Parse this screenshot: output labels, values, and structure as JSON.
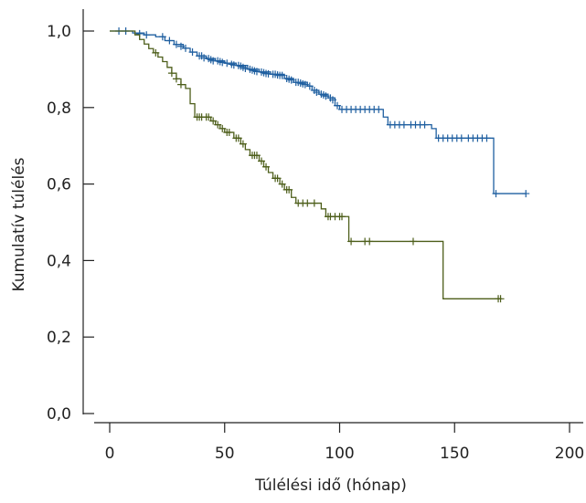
{
  "chart_data": {
    "type": "line",
    "subtype": "kaplan-meier",
    "xlabel": "Túlélési idő (hónap)",
    "ylabel": "Kumulatív túlélés",
    "xlim": [
      0,
      200
    ],
    "ylim": [
      0,
      1.0
    ],
    "x_ticks": [
      0,
      50,
      100,
      150,
      200
    ],
    "x_tick_labels": [
      "0",
      "50",
      "100",
      "150",
      "200"
    ],
    "y_ticks": [
      0,
      0.2,
      0.4,
      0.6,
      0.8,
      1.0
    ],
    "y_tick_labels": [
      "0,0",
      "0,2",
      "0,4",
      "0,6",
      "0,8",
      "1,0"
    ],
    "grid": false,
    "legend": "none",
    "series": [
      {
        "color": "#1f5fa0",
        "steps": [
          [
            0,
            1.0
          ],
          [
            10,
            0.995
          ],
          [
            15,
            0.99
          ],
          [
            20,
            0.985
          ],
          [
            24,
            0.975
          ],
          [
            28,
            0.965
          ],
          [
            32,
            0.955
          ],
          [
            35,
            0.945
          ],
          [
            38,
            0.935
          ],
          [
            42,
            0.928
          ],
          [
            46,
            0.922
          ],
          [
            50,
            0.916
          ],
          [
            55,
            0.91
          ],
          [
            60,
            0.9
          ],
          [
            65,
            0.893
          ],
          [
            70,
            0.887
          ],
          [
            76,
            0.876
          ],
          [
            80,
            0.866
          ],
          [
            86,
            0.856
          ],
          [
            88,
            0.845
          ],
          [
            91,
            0.835
          ],
          [
            95,
            0.825
          ],
          [
            98,
            0.805
          ],
          [
            100,
            0.795
          ],
          [
            119,
            0.775
          ],
          [
            121,
            0.755
          ],
          [
            140,
            0.745
          ],
          [
            142,
            0.72
          ],
          [
            166,
            0.72
          ],
          [
            167,
            0.575
          ],
          [
            181,
            0.575
          ]
        ],
        "censored": [
          [
            4,
            1.0
          ],
          [
            7,
            1.0
          ],
          [
            13,
            0.993
          ],
          [
            16,
            0.99
          ],
          [
            23,
            0.985
          ],
          [
            26,
            0.975
          ],
          [
            29,
            0.965
          ],
          [
            31,
            0.96
          ],
          [
            33,
            0.955
          ],
          [
            36,
            0.945
          ],
          [
            39,
            0.935
          ],
          [
            40,
            0.935
          ],
          [
            41,
            0.93
          ],
          [
            43,
            0.928
          ],
          [
            44,
            0.925
          ],
          [
            45,
            0.922
          ],
          [
            47,
            0.922
          ],
          [
            48,
            0.92
          ],
          [
            49,
            0.918
          ],
          [
            51,
            0.916
          ],
          [
            53,
            0.913
          ],
          [
            54,
            0.911
          ],
          [
            56,
            0.91
          ],
          [
            57,
            0.908
          ],
          [
            58,
            0.905
          ],
          [
            59,
            0.902
          ],
          [
            61,
            0.9
          ],
          [
            62,
            0.898
          ],
          [
            63,
            0.896
          ],
          [
            64,
            0.894
          ],
          [
            66,
            0.893
          ],
          [
            67,
            0.891
          ],
          [
            68,
            0.889
          ],
          [
            69,
            0.888
          ],
          [
            71,
            0.887
          ],
          [
            72,
            0.887
          ],
          [
            73,
            0.885
          ],
          [
            74,
            0.884
          ],
          [
            75,
            0.884
          ],
          [
            77,
            0.876
          ],
          [
            78,
            0.874
          ],
          [
            79,
            0.872
          ],
          [
            81,
            0.866
          ],
          [
            82,
            0.866
          ],
          [
            83,
            0.864
          ],
          [
            84,
            0.862
          ],
          [
            85,
            0.86
          ],
          [
            87,
            0.856
          ],
          [
            89,
            0.845
          ],
          [
            90,
            0.84
          ],
          [
            92,
            0.835
          ],
          [
            93,
            0.833
          ],
          [
            94,
            0.83
          ],
          [
            96,
            0.825
          ],
          [
            97,
            0.82
          ],
          [
            99,
            0.805
          ],
          [
            101,
            0.795
          ],
          [
            103,
            0.795
          ],
          [
            105,
            0.795
          ],
          [
            107,
            0.795
          ],
          [
            109,
            0.795
          ],
          [
            111,
            0.795
          ],
          [
            113,
            0.795
          ],
          [
            115,
            0.795
          ],
          [
            117,
            0.795
          ],
          [
            122,
            0.755
          ],
          [
            124,
            0.755
          ],
          [
            126,
            0.755
          ],
          [
            128,
            0.755
          ],
          [
            131,
            0.755
          ],
          [
            133,
            0.755
          ],
          [
            135,
            0.755
          ],
          [
            137,
            0.755
          ],
          [
            143,
            0.72
          ],
          [
            145,
            0.72
          ],
          [
            147,
            0.72
          ],
          [
            149,
            0.72
          ],
          [
            151,
            0.72
          ],
          [
            153,
            0.72
          ],
          [
            156,
            0.72
          ],
          [
            158,
            0.72
          ],
          [
            160,
            0.72
          ],
          [
            162,
            0.72
          ],
          [
            164,
            0.72
          ],
          [
            168,
            0.575
          ],
          [
            181,
            0.575
          ]
        ]
      },
      {
        "color": "#4d5e1a",
        "steps": [
          [
            0,
            1.0
          ],
          [
            11,
            0.99
          ],
          [
            13,
            0.978
          ],
          [
            15,
            0.966
          ],
          [
            17,
            0.954
          ],
          [
            19,
            0.943
          ],
          [
            21,
            0.932
          ],
          [
            23,
            0.92
          ],
          [
            25,
            0.905
          ],
          [
            27,
            0.89
          ],
          [
            29,
            0.875
          ],
          [
            31,
            0.86
          ],
          [
            33,
            0.85
          ],
          [
            35,
            0.81
          ],
          [
            37,
            0.775
          ],
          [
            44,
            0.765
          ],
          [
            46,
            0.755
          ],
          [
            48,
            0.745
          ],
          [
            50,
            0.735
          ],
          [
            54,
            0.72
          ],
          [
            57,
            0.705
          ],
          [
            59,
            0.69
          ],
          [
            61,
            0.675
          ],
          [
            65,
            0.66
          ],
          [
            67,
            0.645
          ],
          [
            69,
            0.63
          ],
          [
            71,
            0.615
          ],
          [
            74,
            0.6
          ],
          [
            76,
            0.585
          ],
          [
            79,
            0.565
          ],
          [
            81,
            0.55
          ],
          [
            92,
            0.535
          ],
          [
            94,
            0.515
          ],
          [
            104,
            0.45
          ],
          [
            144,
            0.45
          ],
          [
            145,
            0.3
          ],
          [
            170,
            0.3
          ]
        ],
        "censored": [
          [
            20,
            0.943
          ],
          [
            27,
            0.89
          ],
          [
            29,
            0.875
          ],
          [
            31,
            0.86
          ],
          [
            38,
            0.775
          ],
          [
            39,
            0.775
          ],
          [
            40,
            0.775
          ],
          [
            42,
            0.775
          ],
          [
            43,
            0.775
          ],
          [
            45,
            0.765
          ],
          [
            47,
            0.755
          ],
          [
            49,
            0.745
          ],
          [
            51,
            0.735
          ],
          [
            52,
            0.735
          ],
          [
            55,
            0.72
          ],
          [
            56,
            0.72
          ],
          [
            58,
            0.705
          ],
          [
            62,
            0.675
          ],
          [
            63,
            0.675
          ],
          [
            64,
            0.675
          ],
          [
            66,
            0.66
          ],
          [
            68,
            0.645
          ],
          [
            72,
            0.615
          ],
          [
            73,
            0.615
          ],
          [
            75,
            0.6
          ],
          [
            77,
            0.585
          ],
          [
            78,
            0.585
          ],
          [
            82,
            0.55
          ],
          [
            84,
            0.55
          ],
          [
            86,
            0.55
          ],
          [
            89,
            0.55
          ],
          [
            95,
            0.515
          ],
          [
            96,
            0.515
          ],
          [
            98,
            0.515
          ],
          [
            100,
            0.515
          ],
          [
            101,
            0.515
          ],
          [
            105,
            0.45
          ],
          [
            111,
            0.45
          ],
          [
            113,
            0.45
          ],
          [
            132,
            0.45
          ],
          [
            169,
            0.3
          ],
          [
            170,
            0.3
          ]
        ]
      }
    ]
  }
}
